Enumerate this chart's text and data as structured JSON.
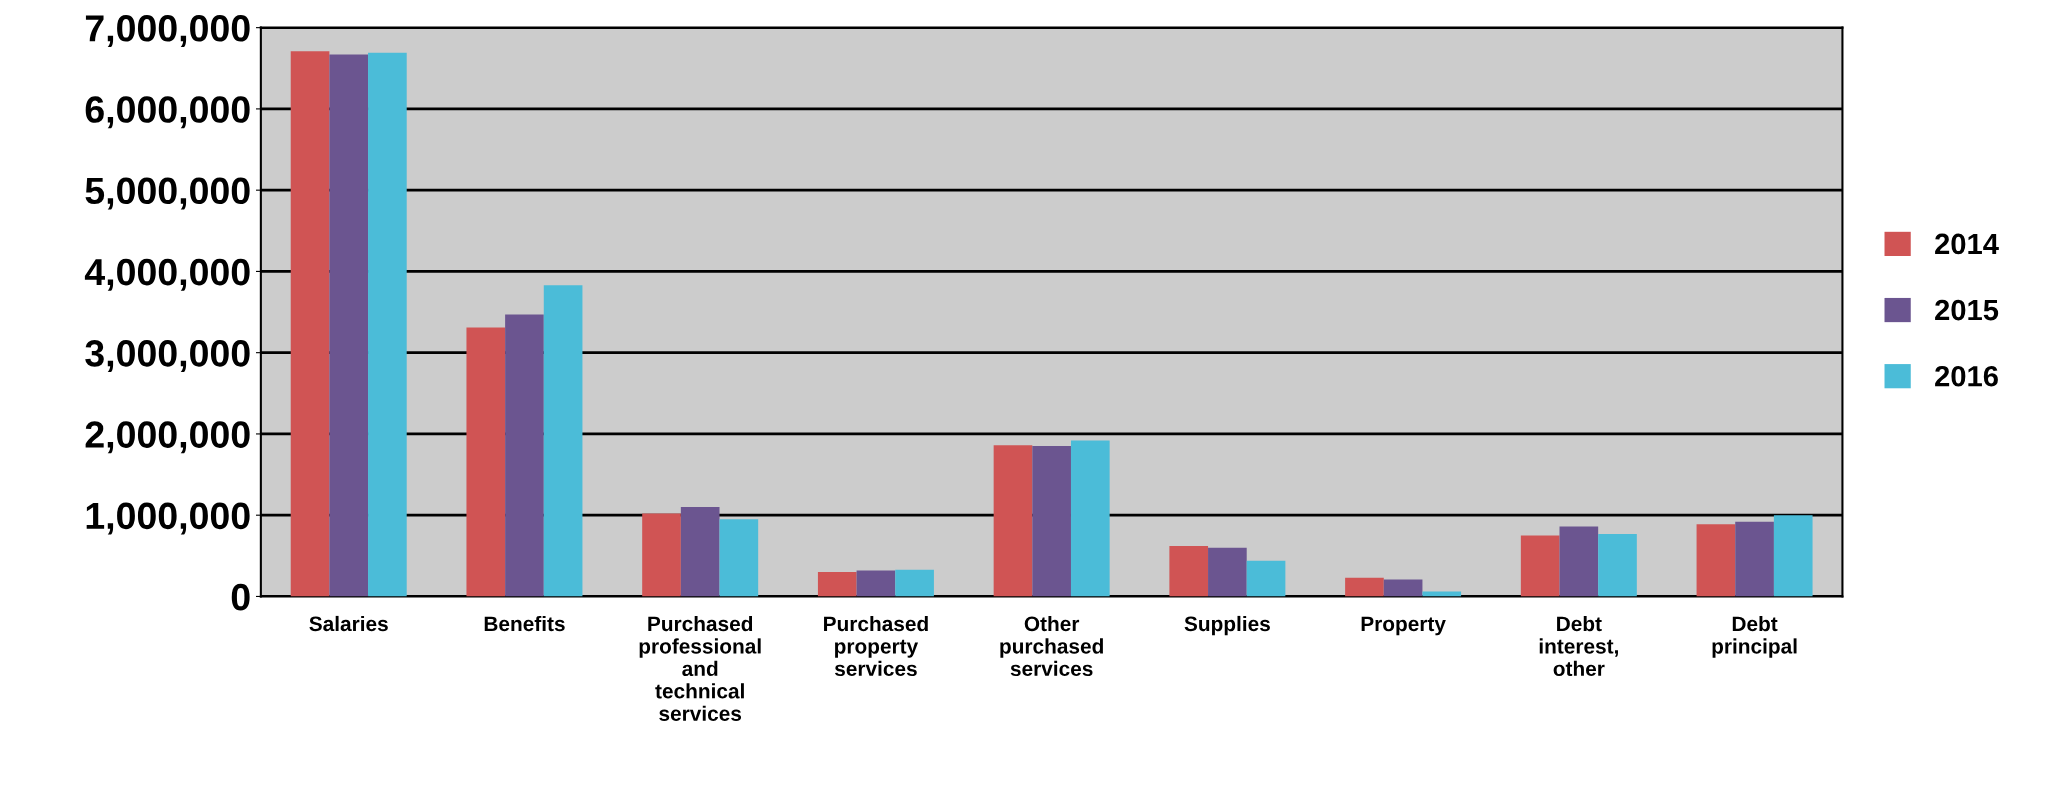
{
  "chart_data": {
    "type": "bar",
    "categories": [
      "Salaries",
      "Benefits",
      "Purchased\nprofessional\nand\ntechnical\nservices",
      "Purchased\nproperty\nservices",
      "Other\npurchased\nservices",
      "Supplies",
      "Property",
      "Debt\ninterest,\nother",
      "Debt\nprincipal"
    ],
    "series": [
      {
        "name": "2014",
        "color": "#d05454",
        "values": [
          6710000,
          3310000,
          1020000,
          300000,
          1860000,
          620000,
          230000,
          750000,
          890000
        ]
      },
      {
        "name": "2015",
        "color": "#6b5590",
        "values": [
          6670000,
          3470000,
          1100000,
          320000,
          1850000,
          600000,
          210000,
          860000,
          920000
        ]
      },
      {
        "name": "2016",
        "color": "#4bbcd8",
        "values": [
          6690000,
          3830000,
          950000,
          330000,
          1920000,
          440000,
          60000,
          770000,
          1000000
        ]
      }
    ],
    "ylim": [
      0,
      7000000
    ],
    "yticks": [
      {
        "value": 0,
        "label": "0"
      },
      {
        "value": 1000000,
        "label": "1,000,000"
      },
      {
        "value": 2000000,
        "label": "2,000,000"
      },
      {
        "value": 3000000,
        "label": "3,000,000"
      },
      {
        "value": 4000000,
        "label": "4,000,000"
      },
      {
        "value": 5000000,
        "label": "5,000,000"
      },
      {
        "value": 6000000,
        "label": "6,000,000"
      },
      {
        "value": 7000000,
        "label": "7,000,000"
      }
    ],
    "grid": "y",
    "legend": "right"
  }
}
